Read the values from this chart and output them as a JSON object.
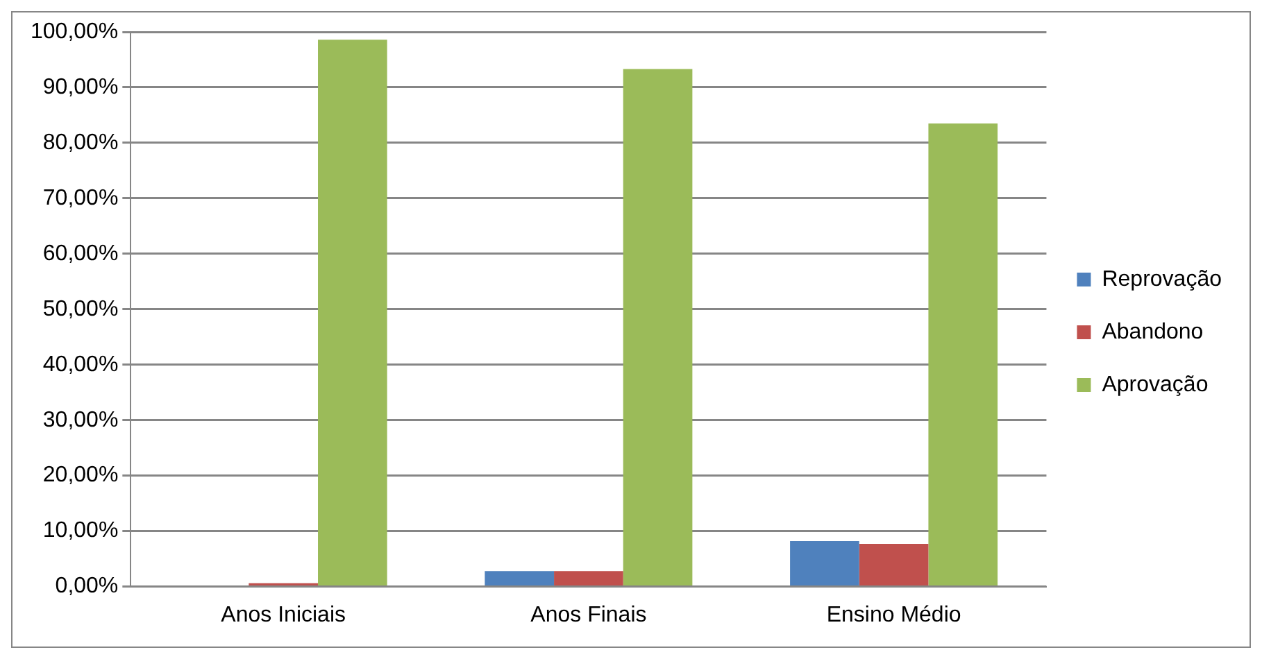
{
  "chart_data": {
    "type": "bar",
    "categories": [
      "Anos Iniciais",
      "Anos Finais",
      "Ensino Médio"
    ],
    "series": [
      {
        "name": "Reprovação",
        "color": "#4f81bd",
        "values": [
          0.2,
          2.8,
          8.2
        ]
      },
      {
        "name": "Abandono",
        "color": "#c0504d",
        "values": [
          0.6,
          2.8,
          7.7
        ]
      },
      {
        "name": "Aprovação",
        "color": "#9bbb59",
        "values": [
          98.6,
          93.3,
          83.5
        ]
      }
    ],
    "ylim": [
      0,
      100
    ],
    "yticks": [
      {
        "value": 0,
        "label": "0,00%"
      },
      {
        "value": 10,
        "label": "10,00%"
      },
      {
        "value": 20,
        "label": "20,00%"
      },
      {
        "value": 30,
        "label": "30,00%"
      },
      {
        "value": 40,
        "label": "40,00%"
      },
      {
        "value": 50,
        "label": "50,00%"
      },
      {
        "value": 60,
        "label": "60,00%"
      },
      {
        "value": 70,
        "label": "70,00%"
      },
      {
        "value": 80,
        "label": "80,00%"
      },
      {
        "value": 90,
        "label": "90,00%"
      },
      {
        "value": 100,
        "label": "100,00%"
      }
    ],
    "grid": "y",
    "legend": "right"
  }
}
